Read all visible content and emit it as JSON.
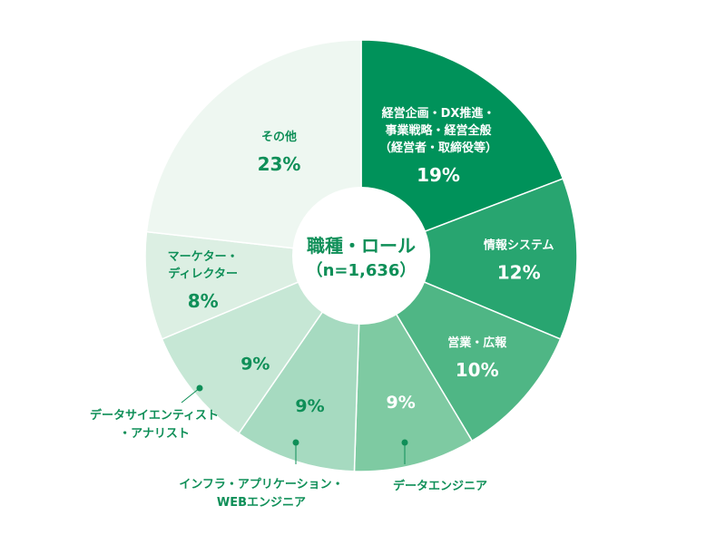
{
  "chart_data": {
    "type": "pie",
    "title": "職種・ロール",
    "subtitle": "（n=1,636）",
    "slices": [
      {
        "label": [
          "経営企画・DX推進・",
          "事業戦略・経営全般",
          "（経営者・取締役等）"
        ],
        "value": 19,
        "display": "19%",
        "color": "#00925a",
        "text_color": "#ffffff"
      },
      {
        "label": [
          "情報システム"
        ],
        "value": 12,
        "display": "12%",
        "color": "#28a570",
        "text_color": "#ffffff"
      },
      {
        "label": [
          "営業・広報"
        ],
        "value": 10,
        "display": "10%",
        "color": "#4fb685",
        "text_color": "#ffffff"
      },
      {
        "label": [
          "データエンジニア"
        ],
        "value": 9,
        "display": "9%",
        "color": "#7ecaa2",
        "text_color": "#ffffff"
      },
      {
        "label": [
          "インフラ・アプリケーション・",
          "WEBエンジニア"
        ],
        "value": 9,
        "display": "9%",
        "color": "#a6dac0",
        "text_color": "#0f8f58"
      },
      {
        "label": [
          "データサイエンティスト",
          "・アナリスト"
        ],
        "value": 9,
        "display": "9%",
        "color": "#c6e7d5",
        "text_color": "#0f8f58"
      },
      {
        "label": [
          "マーケター・",
          "ディレクター"
        ],
        "value": 8,
        "display": "8%",
        "color": "#dcefe3",
        "text_color": "#0f8f58"
      },
      {
        "label": [
          "その他"
        ],
        "value": 23,
        "display": "23%",
        "color": "#eef7f1",
        "text_color": "#0f8f58"
      }
    ]
  }
}
